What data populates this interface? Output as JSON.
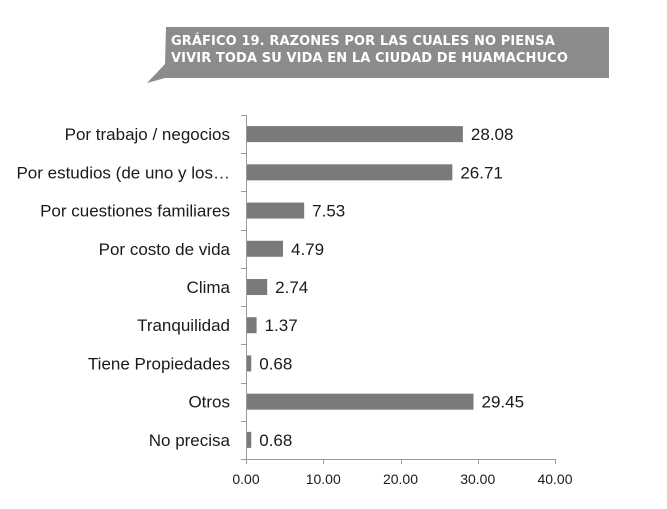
{
  "title": "GRÁFICO 19. RAZONES POR LAS CUALES NO PIENSA\nVIVIR TODA SU VIDA EN LA CIUDAD DE HUAMACHUCO",
  "colors": {
    "banner": "#8c8c8c",
    "bar": "#7a7a7a",
    "axis": "#9a9a9a"
  },
  "chart_data": {
    "type": "bar",
    "orientation": "horizontal",
    "title": "GRÁFICO 19. RAZONES POR LAS CUALES NO PIENSA VIVIR TODA SU VIDA EN LA CIUDAD DE HUAMACHUCO",
    "categories": [
      "Por trabajo / negocios",
      "Por estudios (de uno y los…",
      "Por cuestiones familiares",
      "Por costo de vida",
      "Clima",
      "Tranquilidad",
      "Tiene Propiedades",
      "Otros",
      "No precisa"
    ],
    "values": [
      28.08,
      26.71,
      7.53,
      4.79,
      2.74,
      1.37,
      0.68,
      29.45,
      0.68
    ],
    "value_labels": [
      "28.08",
      "26.71",
      "7.53",
      "4.79",
      "2.74",
      "1.37",
      "0.68",
      "29.45",
      "0.68"
    ],
    "xlim": [
      0,
      40
    ],
    "xticks": [
      "0.00",
      "10.00",
      "20.00",
      "30.00",
      "40.00"
    ],
    "xtick_values": [
      0,
      10,
      20,
      30,
      40
    ],
    "xlabel": "",
    "ylabel": "",
    "grid": false,
    "legend": "none"
  }
}
